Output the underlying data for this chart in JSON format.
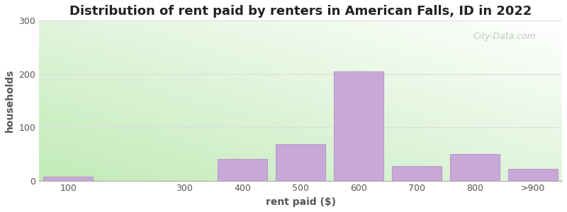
{
  "title": "Distribution of rent paid by renters in American Falls, ID in 2022",
  "xlabel": "rent paid ($)",
  "ylabel": "households",
  "categories": [
    "100",
    "300",
    "400",
    "500",
    "600",
    "700",
    "800",
    ">900"
  ],
  "x_positions": [
    0,
    2,
    3,
    4,
    5,
    6,
    7,
    8
  ],
  "values": [
    8,
    0,
    40,
    68,
    205,
    28,
    50,
    22
  ],
  "bar_color": "#c8a8d8",
  "bar_edge_color": "#b898c8",
  "ylim": [
    0,
    300
  ],
  "yticks": [
    0,
    100,
    200,
    300
  ],
  "title_fontsize": 13,
  "axis_label_fontsize": 10,
  "tick_fontsize": 9,
  "watermark_text": "City-Data.com",
  "bg_colors": [
    "#c8e8c0",
    "#e8f5e0",
    "#f5faf5",
    "#ffffff"
  ],
  "grid_color": "#dddddd",
  "text_color": "#555555"
}
